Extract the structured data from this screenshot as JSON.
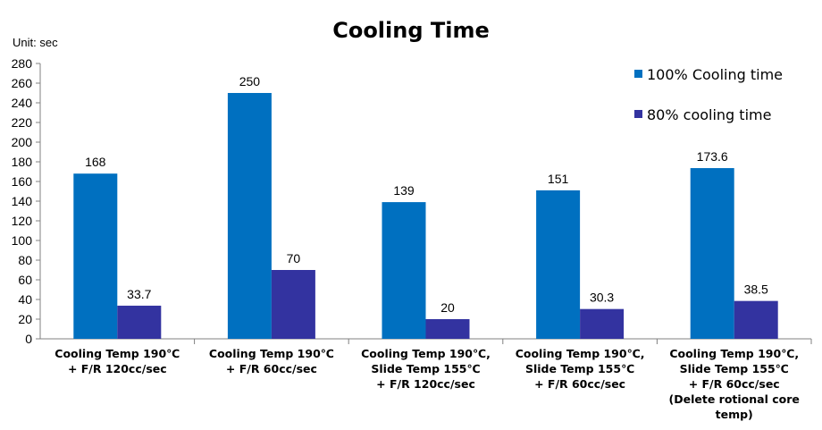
{
  "chart_data": {
    "type": "bar",
    "title": "Cooling Time",
    "unit_label": "Unit: sec",
    "xlabel": "",
    "ylabel": "",
    "ylim": [
      0,
      280
    ],
    "yticks": [
      0,
      20,
      40,
      60,
      80,
      100,
      120,
      140,
      160,
      180,
      200,
      220,
      240,
      260,
      280
    ],
    "categories": [
      [
        "Cooling Temp 190℃",
        "+ F/R 120cc/sec"
      ],
      [
        "Cooling Temp 190℃",
        "+ F/R 60cc/sec"
      ],
      [
        "Cooling Temp 190℃,",
        "Slide Temp 155℃",
        "+ F/R 120cc/sec"
      ],
      [
        "Cooling Temp 190℃,",
        "Slide Temp 155℃",
        "+ F/R 60cc/sec"
      ],
      [
        "Cooling Temp 190℃,",
        "Slide Temp 155℃",
        "+ F/R 60cc/sec",
        "(Delete rotional core",
        "temp)"
      ]
    ],
    "series": [
      {
        "name": "100% Cooling time",
        "color": "#0070C0",
        "values": [
          168,
          250,
          139,
          151,
          173.6
        ],
        "labels": [
          "168",
          "250",
          "139",
          "151",
          "173.6"
        ]
      },
      {
        "name": "80% cooling time",
        "color": "#3333A0",
        "values": [
          33.7,
          70,
          20,
          30.3,
          38.5
        ],
        "labels": [
          "33.7",
          "70",
          "20",
          "30.3",
          "38.5"
        ]
      }
    ],
    "grid": false,
    "legend_position": "top-right"
  }
}
